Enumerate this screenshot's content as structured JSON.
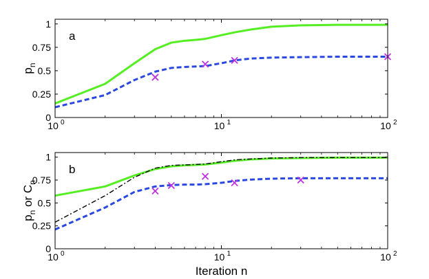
{
  "chart_data": [
    {
      "type": "line",
      "panel_label": "a",
      "ylabel": {
        "main": "p",
        "sub": "n"
      },
      "xlabel": "",
      "x_scale": "log",
      "xlim": [
        1,
        100
      ],
      "ylim": [
        0,
        1.05
      ],
      "x_ticks": [
        {
          "value": 1,
          "base": "10",
          "exp": "0"
        },
        {
          "value": 10,
          "base": "10",
          "exp": "1"
        },
        {
          "value": 100,
          "base": "10",
          "exp": "2"
        }
      ],
      "y_ticks": [
        {
          "value": 0,
          "label": "0"
        },
        {
          "value": 0.25,
          "label": "0.25"
        },
        {
          "value": 0.5,
          "label": "0.5"
        },
        {
          "value": 0.75,
          "label": "0.75"
        },
        {
          "value": 1,
          "label": "1"
        }
      ],
      "series": [
        {
          "style": "solid",
          "color": "#55ee22",
          "x": [
            1,
            2,
            3,
            4,
            5,
            6,
            7,
            8,
            10,
            12,
            15,
            20,
            30,
            50,
            100
          ],
          "y": [
            0.15,
            0.36,
            0.58,
            0.73,
            0.8,
            0.82,
            0.83,
            0.84,
            0.88,
            0.91,
            0.94,
            0.97,
            0.985,
            0.99,
            0.99
          ]
        },
        {
          "style": "dashed",
          "color": "#2a48e0",
          "x": [
            1,
            2,
            3,
            4,
            5,
            6,
            7,
            8,
            10,
            12,
            15,
            20,
            30,
            50,
            100
          ],
          "y": [
            0.11,
            0.24,
            0.4,
            0.49,
            0.53,
            0.54,
            0.545,
            0.55,
            0.58,
            0.61,
            0.63,
            0.64,
            0.645,
            0.65,
            0.65
          ]
        }
      ],
      "markers": {
        "color": "#bb33dd",
        "x": [
          4,
          8,
          12,
          100
        ],
        "y": [
          0.43,
          0.57,
          0.61,
          0.65
        ]
      }
    },
    {
      "type": "line",
      "panel_label": "b",
      "ylabel": {
        "main": "p",
        "sub": "n",
        "or": " or C",
        "sub2": "n"
      },
      "xlabel": "Iteration n",
      "x_scale": "log",
      "xlim": [
        1,
        100
      ],
      "ylim": [
        0,
        1.05
      ],
      "x_ticks": [
        {
          "value": 1,
          "base": "10",
          "exp": "0"
        },
        {
          "value": 10,
          "base": "10",
          "exp": "1"
        },
        {
          "value": 100,
          "base": "10",
          "exp": "2"
        }
      ],
      "y_ticks": [
        {
          "value": 0,
          "label": "0"
        },
        {
          "value": 0.25,
          "label": "0.25"
        },
        {
          "value": 0.5,
          "label": "0.5"
        },
        {
          "value": 0.75,
          "label": "0.75"
        },
        {
          "value": 1,
          "label": "1"
        }
      ],
      "series": [
        {
          "style": "solid",
          "color": "#55ee22",
          "x": [
            1,
            2,
            3,
            4,
            5,
            6,
            7,
            8,
            10,
            12,
            15,
            20,
            30,
            50,
            100
          ],
          "y": [
            0.58,
            0.68,
            0.8,
            0.87,
            0.9,
            0.91,
            0.915,
            0.92,
            0.94,
            0.96,
            0.975,
            0.985,
            0.99,
            0.995,
            0.995
          ]
        },
        {
          "style": "dashed",
          "color": "#2a48e0",
          "x": [
            1,
            2,
            3,
            4,
            5,
            6,
            7,
            8,
            10,
            12,
            15,
            20,
            30,
            50,
            100
          ],
          "y": [
            0.21,
            0.45,
            0.62,
            0.68,
            0.695,
            0.7,
            0.7,
            0.705,
            0.72,
            0.74,
            0.755,
            0.765,
            0.77,
            0.77,
            0.77
          ]
        },
        {
          "style": "dashdot",
          "color": "#000000",
          "x": [
            1,
            2,
            3,
            4,
            5,
            6,
            7,
            8,
            10,
            12,
            15,
            20,
            30,
            50,
            100
          ],
          "y": [
            0.29,
            0.58,
            0.78,
            0.88,
            0.91,
            0.915,
            0.92,
            0.925,
            0.95,
            0.97,
            0.98,
            0.99,
            0.995,
            0.995,
            0.995
          ]
        }
      ],
      "markers": {
        "color": "#bb33dd",
        "x": [
          4,
          5,
          8,
          12,
          30
        ],
        "y": [
          0.63,
          0.69,
          0.79,
          0.72,
          0.75
        ]
      }
    }
  ]
}
